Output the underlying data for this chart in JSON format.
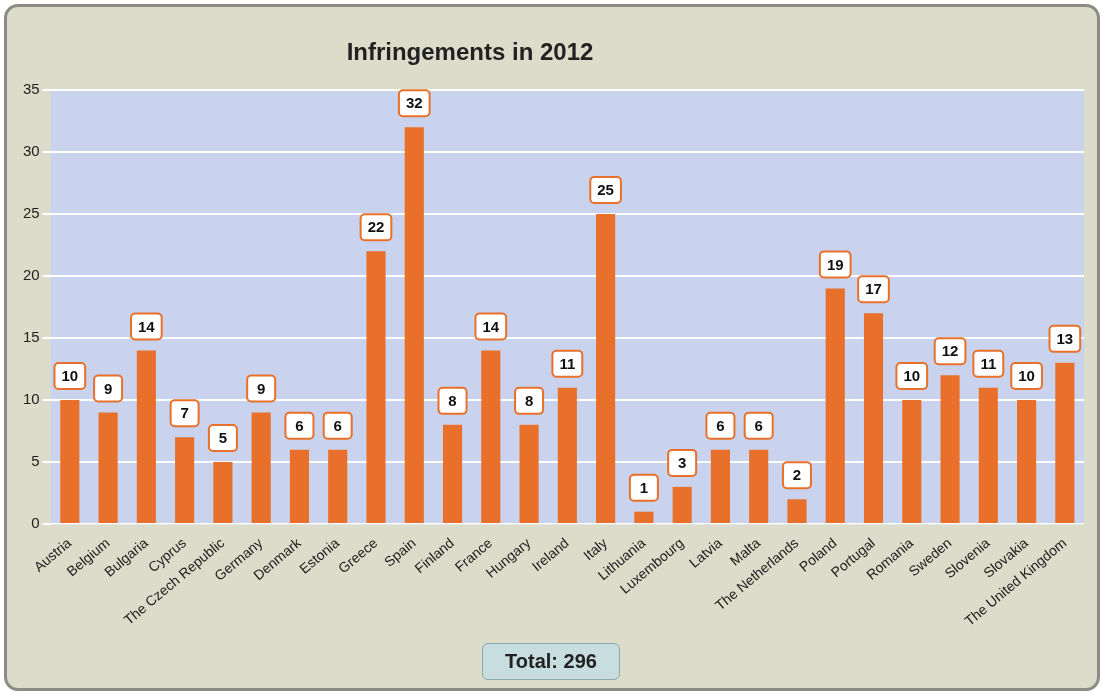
{
  "chart_data": {
    "type": "bar",
    "title": "Infringements in 2012",
    "categories": [
      "Austria",
      "Belgium",
      "Bulgaria",
      "Cyprus",
      "The Czech Republic",
      "Germany",
      "Denmark",
      "Estonia",
      "Greece",
      "Spain",
      "Finland",
      "France",
      "Hungary",
      "Ireland",
      "Italy",
      "Lithuania",
      "Luxembourg",
      "Latvia",
      "Malta",
      "The Netherlands",
      "Poland",
      "Portugal",
      "Romania",
      "Sweden",
      "Slovenia",
      "Slovakia",
      "The United Kingdom"
    ],
    "values": [
      10,
      9,
      14,
      7,
      5,
      9,
      6,
      6,
      22,
      32,
      8,
      14,
      8,
      11,
      25,
      1,
      3,
      6,
      6,
      2,
      19,
      17,
      10,
      12,
      11,
      10,
      13
    ],
    "color": "#e8702a",
    "ylim": [
      0,
      35
    ],
    "yticks": [
      0,
      5,
      10,
      15,
      20,
      25,
      30,
      35
    ],
    "grid": "y",
    "data_labels": true,
    "annotations": [
      "Total: 296"
    ]
  }
}
